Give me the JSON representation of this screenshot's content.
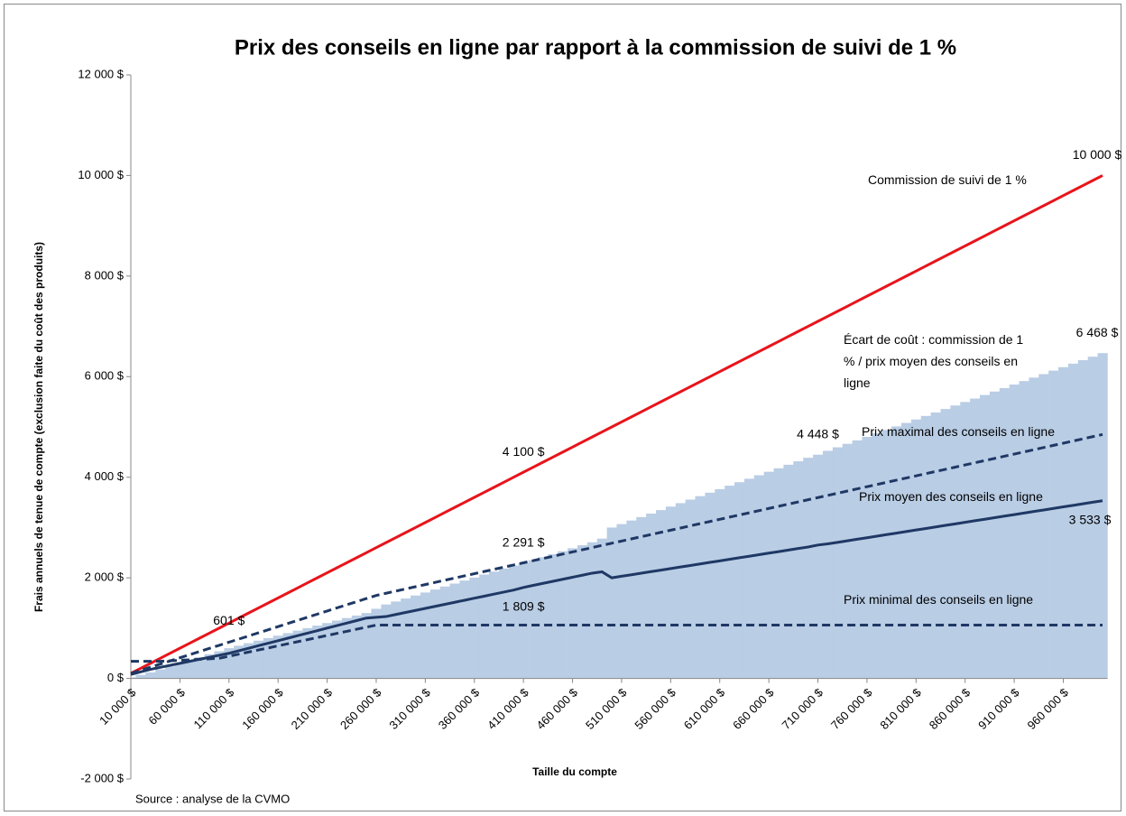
{
  "chart_data": {
    "type": "line",
    "title": "Prix des conseils en ligne par rapport à la commission de suivi de 1 %",
    "ylabel": "Frais annuels de tenue de compte (exclusion faite du coût des produits)",
    "xlabel": "Taille du compte",
    "source": "Source : analyse de la CVMO",
    "categories": [
      "10 000 $",
      null,
      null,
      null,
      null,
      "60 000 $",
      null,
      null,
      null,
      null,
      "110 000 $",
      null,
      null,
      null,
      null,
      "160 000 $",
      null,
      null,
      null,
      null,
      "210 000 $",
      null,
      null,
      null,
      null,
      "260 000 $",
      null,
      null,
      null,
      null,
      "310 000 $",
      null,
      null,
      null,
      null,
      "360 000 $",
      null,
      null,
      null,
      null,
      "410 000 $",
      null,
      null,
      null,
      null,
      "460 000 $",
      null,
      null,
      null,
      null,
      "510 000 $",
      null,
      null,
      null,
      null,
      "560 000 $",
      null,
      null,
      null,
      null,
      "610 000 $",
      null,
      null,
      null,
      null,
      "660 000 $",
      null,
      null,
      null,
      null,
      "710 000 $",
      null,
      null,
      null,
      null,
      "760 000 $",
      null,
      null,
      null,
      null,
      "810 000 $",
      null,
      null,
      null,
      null,
      "860 000 $",
      null,
      null,
      null,
      null,
      "910 000 $",
      null,
      null,
      null,
      null,
      "960 000 $",
      null,
      null,
      null,
      null
    ],
    "ylim": [
      -2000,
      12000
    ],
    "yticks": [
      {
        "value": -2000,
        "label": "-2 000 $"
      },
      {
        "value": 0,
        "label": "0 $"
      },
      {
        "value": 2000,
        "label": "2 000 $"
      },
      {
        "value": 4000,
        "label": "4 000 $"
      },
      {
        "value": 6000,
        "label": "6 000 $"
      },
      {
        "value": 8000,
        "label": "8 000 $"
      },
      {
        "value": 10000,
        "label": "10 000 $"
      },
      {
        "value": 12000,
        "label": "12 000 $"
      }
    ],
    "series": [
      {
        "name": "Écart de coût : commission de 1 % / prix moyen des conseils en ligne",
        "color": "#b9cde5",
        "area": true,
        "values": [
          20,
          70,
          120,
          180,
          240,
          300,
          360,
          420,
          480,
          540,
          601,
          650,
          700,
          750,
          800,
          850,
          900,
          950,
          1000,
          1050,
          1100,
          1150,
          1200,
          1250,
          1300,
          1385,
          1470,
          1529,
          1589,
          1648,
          1708,
          1767,
          1827,
          1886,
          1946,
          2005,
          2065,
          2124,
          2184,
          2243,
          2291,
          2350,
          2410,
          2469,
          2529,
          2588,
          2648,
          2707,
          2780,
          3000,
          3069,
          3139,
          3208,
          3277,
          3347,
          3416,
          3485,
          3555,
          3624,
          3693,
          3763,
          3832,
          3901,
          3971,
          4040,
          4109,
          4179,
          4248,
          4317,
          4387,
          4448,
          4525,
          4595,
          4664,
          4733,
          4803,
          4872,
          4941,
          5011,
          5080,
          5149,
          5219,
          5288,
          5357,
          5427,
          5496,
          5565,
          5635,
          5704,
          5773,
          5843,
          5912,
          5981,
          6051,
          6120,
          6189,
          6259,
          6328,
          6397,
          6468
        ],
        "value_labels": [
          null,
          null,
          null,
          null,
          null,
          null,
          null,
          null,
          null,
          null,
          "601 $",
          null,
          null,
          null,
          null,
          null,
          null,
          null,
          null,
          null,
          null,
          null,
          null,
          null,
          null,
          null,
          null,
          null,
          null,
          null,
          null,
          null,
          null,
          null,
          null,
          null,
          null,
          null,
          null,
          null,
          "2 291 $",
          null,
          null,
          null,
          null,
          null,
          null,
          null,
          null,
          null,
          null,
          null,
          null,
          null,
          null,
          null,
          null,
          null,
          null,
          null,
          null,
          null,
          null,
          null,
          null,
          null,
          null,
          null,
          null,
          null,
          "4 448 $",
          null,
          null,
          null,
          null,
          null,
          null,
          null,
          null,
          null,
          null,
          null,
          null,
          null,
          null,
          null,
          null,
          null,
          null,
          null,
          null,
          null,
          null,
          null,
          null,
          null,
          null,
          null,
          null,
          "6 468 $"
        ]
      },
      {
        "name": "Commission de suivi de 1 %",
        "color": "#e8141b",
        "values": [
          100,
          200,
          300,
          400,
          500,
          600,
          700,
          800,
          900,
          1000,
          1100,
          1200,
          1300,
          1400,
          1500,
          1600,
          1700,
          1800,
          1900,
          2000,
          2100,
          2200,
          2300,
          2400,
          2500,
          2600,
          2700,
          2800,
          2900,
          3000,
          3100,
          3200,
          3300,
          3400,
          3500,
          3600,
          3700,
          3800,
          3900,
          4000,
          4100,
          4200,
          4300,
          4400,
          4500,
          4600,
          4700,
          4800,
          4900,
          5000,
          5100,
          5200,
          5300,
          5400,
          5500,
          5600,
          5700,
          5800,
          5900,
          6000,
          6100,
          6200,
          6300,
          6400,
          6500,
          6600,
          6700,
          6800,
          6900,
          7000,
          7100,
          7200,
          7300,
          7400,
          7500,
          7600,
          7700,
          7800,
          7900,
          8000,
          8100,
          8200,
          8300,
          8400,
          8500,
          8600,
          8700,
          8800,
          8900,
          9000,
          9100,
          9200,
          9300,
          9400,
          9500,
          9600,
          9700,
          9800,
          9900,
          10000
        ],
        "value_labels": [
          null,
          null,
          null,
          null,
          null,
          null,
          null,
          null,
          null,
          null,
          null,
          null,
          null,
          null,
          null,
          null,
          null,
          null,
          null,
          null,
          null,
          null,
          null,
          null,
          null,
          null,
          null,
          null,
          null,
          null,
          null,
          null,
          null,
          null,
          null,
          null,
          null,
          null,
          null,
          null,
          "4 100 $",
          null,
          null,
          null,
          null,
          null,
          null,
          null,
          null,
          null,
          null,
          null,
          null,
          null,
          null,
          null,
          null,
          null,
          null,
          null,
          null,
          null,
          null,
          null,
          null,
          null,
          null,
          null,
          null,
          null,
          null,
          null,
          null,
          null,
          null,
          null,
          null,
          null,
          null,
          null,
          null,
          null,
          null,
          null,
          null,
          null,
          null,
          null,
          null,
          null,
          null,
          null,
          null,
          null,
          null,
          null,
          null,
          null,
          null,
          "10 000 $"
        ]
      },
      {
        "name": "Prix maximal des conseils en ligne",
        "color": "#1f3864",
        "dashed": true,
        "values": [
          100,
          162,
          224,
          286,
          348,
          410,
          472,
          534,
          596,
          658,
          720,
          782,
          844,
          906,
          968,
          1030,
          1092,
          1154,
          1216,
          1278,
          1340,
          1402,
          1464,
          1526,
          1588,
          1650,
          1693,
          1736,
          1780,
          1823,
          1866,
          1909,
          1953,
          1996,
          2039,
          2082,
          2126,
          2169,
          2212,
          2255,
          2299,
          2342,
          2385,
          2428,
          2472,
          2515,
          2558,
          2601,
          2645,
          2688,
          2731,
          2774,
          2818,
          2861,
          2904,
          2947,
          2990,
          3034,
          3077,
          3120,
          3163,
          3207,
          3250,
          3293,
          3336,
          3380,
          3423,
          3466,
          3509,
          3553,
          3596,
          3639,
          3682,
          3726,
          3769,
          3812,
          3855,
          3899,
          3942,
          3985,
          4028,
          4072,
          4115,
          4158,
          4201,
          4245,
          4288,
          4331,
          4374,
          4418,
          4461,
          4504,
          4547,
          4591,
          4634,
          4677,
          4720,
          4764,
          4807,
          4850
        ]
      },
      {
        "name": "Prix moyen des conseils en ligne",
        "color": "#1f3864",
        "values": [
          80,
          130,
          180,
          220,
          260,
          300,
          340,
          380,
          420,
          460,
          499,
          550,
          600,
          650,
          700,
          750,
          800,
          850,
          900,
          950,
          1000,
          1050,
          1100,
          1150,
          1200,
          1215,
          1230,
          1271,
          1311,
          1352,
          1392,
          1433,
          1473,
          1514,
          1554,
          1595,
          1635,
          1676,
          1716,
          1757,
          1809,
          1850,
          1890,
          1931,
          1971,
          2012,
          2052,
          2093,
          2120,
          2000,
          2031,
          2061,
          2092,
          2123,
          2153,
          2184,
          2215,
          2245,
          2276,
          2307,
          2337,
          2368,
          2399,
          2429,
          2460,
          2491,
          2521,
          2552,
          2583,
          2613,
          2652,
          2675,
          2705,
          2736,
          2767,
          2797,
          2828,
          2859,
          2889,
          2920,
          2951,
          2981,
          3012,
          3043,
          3073,
          3104,
          3135,
          3165,
          3196,
          3227,
          3257,
          3288,
          3319,
          3349,
          3380,
          3411,
          3441,
          3472,
          3503,
          3533
        ],
        "value_labels": [
          null,
          null,
          null,
          null,
          null,
          null,
          null,
          null,
          null,
          null,
          null,
          null,
          null,
          null,
          null,
          null,
          null,
          null,
          null,
          null,
          null,
          null,
          null,
          null,
          null,
          null,
          null,
          null,
          null,
          null,
          null,
          null,
          null,
          null,
          null,
          null,
          null,
          null,
          null,
          null,
          "1 809 $",
          null,
          null,
          null,
          null,
          null,
          null,
          null,
          null,
          null,
          null,
          null,
          null,
          null,
          null,
          null,
          null,
          null,
          null,
          null,
          null,
          null,
          null,
          null,
          null,
          null,
          null,
          null,
          null,
          null,
          null,
          null,
          null,
          null,
          null,
          null,
          null,
          null,
          null,
          null,
          null,
          null,
          null,
          null,
          null,
          null,
          null,
          null,
          null,
          null,
          null,
          null,
          null,
          null,
          null,
          null,
          null,
          null,
          null,
          "3 533 $"
        ]
      },
      {
        "name": "Prix minimal des conseils en ligne",
        "color": "#1f3864",
        "dashed": true,
        "values": [
          340,
          340,
          340,
          340,
          350,
          360,
          370,
          380,
          390,
          400,
          441,
          483,
          524,
          565,
          606,
          648,
          689,
          730,
          771,
          813,
          854,
          895,
          936,
          978,
          1019,
          1060,
          1060,
          1060,
          1060,
          1060,
          1060,
          1060,
          1060,
          1060,
          1060,
          1060,
          1060,
          1060,
          1060,
          1060,
          1060,
          1060,
          1060,
          1060,
          1060,
          1060,
          1060,
          1060,
          1060,
          1060,
          1060,
          1060,
          1060,
          1060,
          1060,
          1060,
          1060,
          1060,
          1060,
          1060,
          1060,
          1060,
          1060,
          1060,
          1060,
          1060,
          1060,
          1060,
          1060,
          1060,
          1060,
          1060,
          1060,
          1060,
          1060,
          1060,
          1060,
          1060,
          1060,
          1060,
          1060,
          1060,
          1060,
          1060,
          1060,
          1060,
          1060,
          1060,
          1060,
          1060,
          1060,
          1060,
          1060,
          1060,
          1060,
          1060,
          1060,
          1060,
          1060,
          1060
        ]
      }
    ]
  }
}
